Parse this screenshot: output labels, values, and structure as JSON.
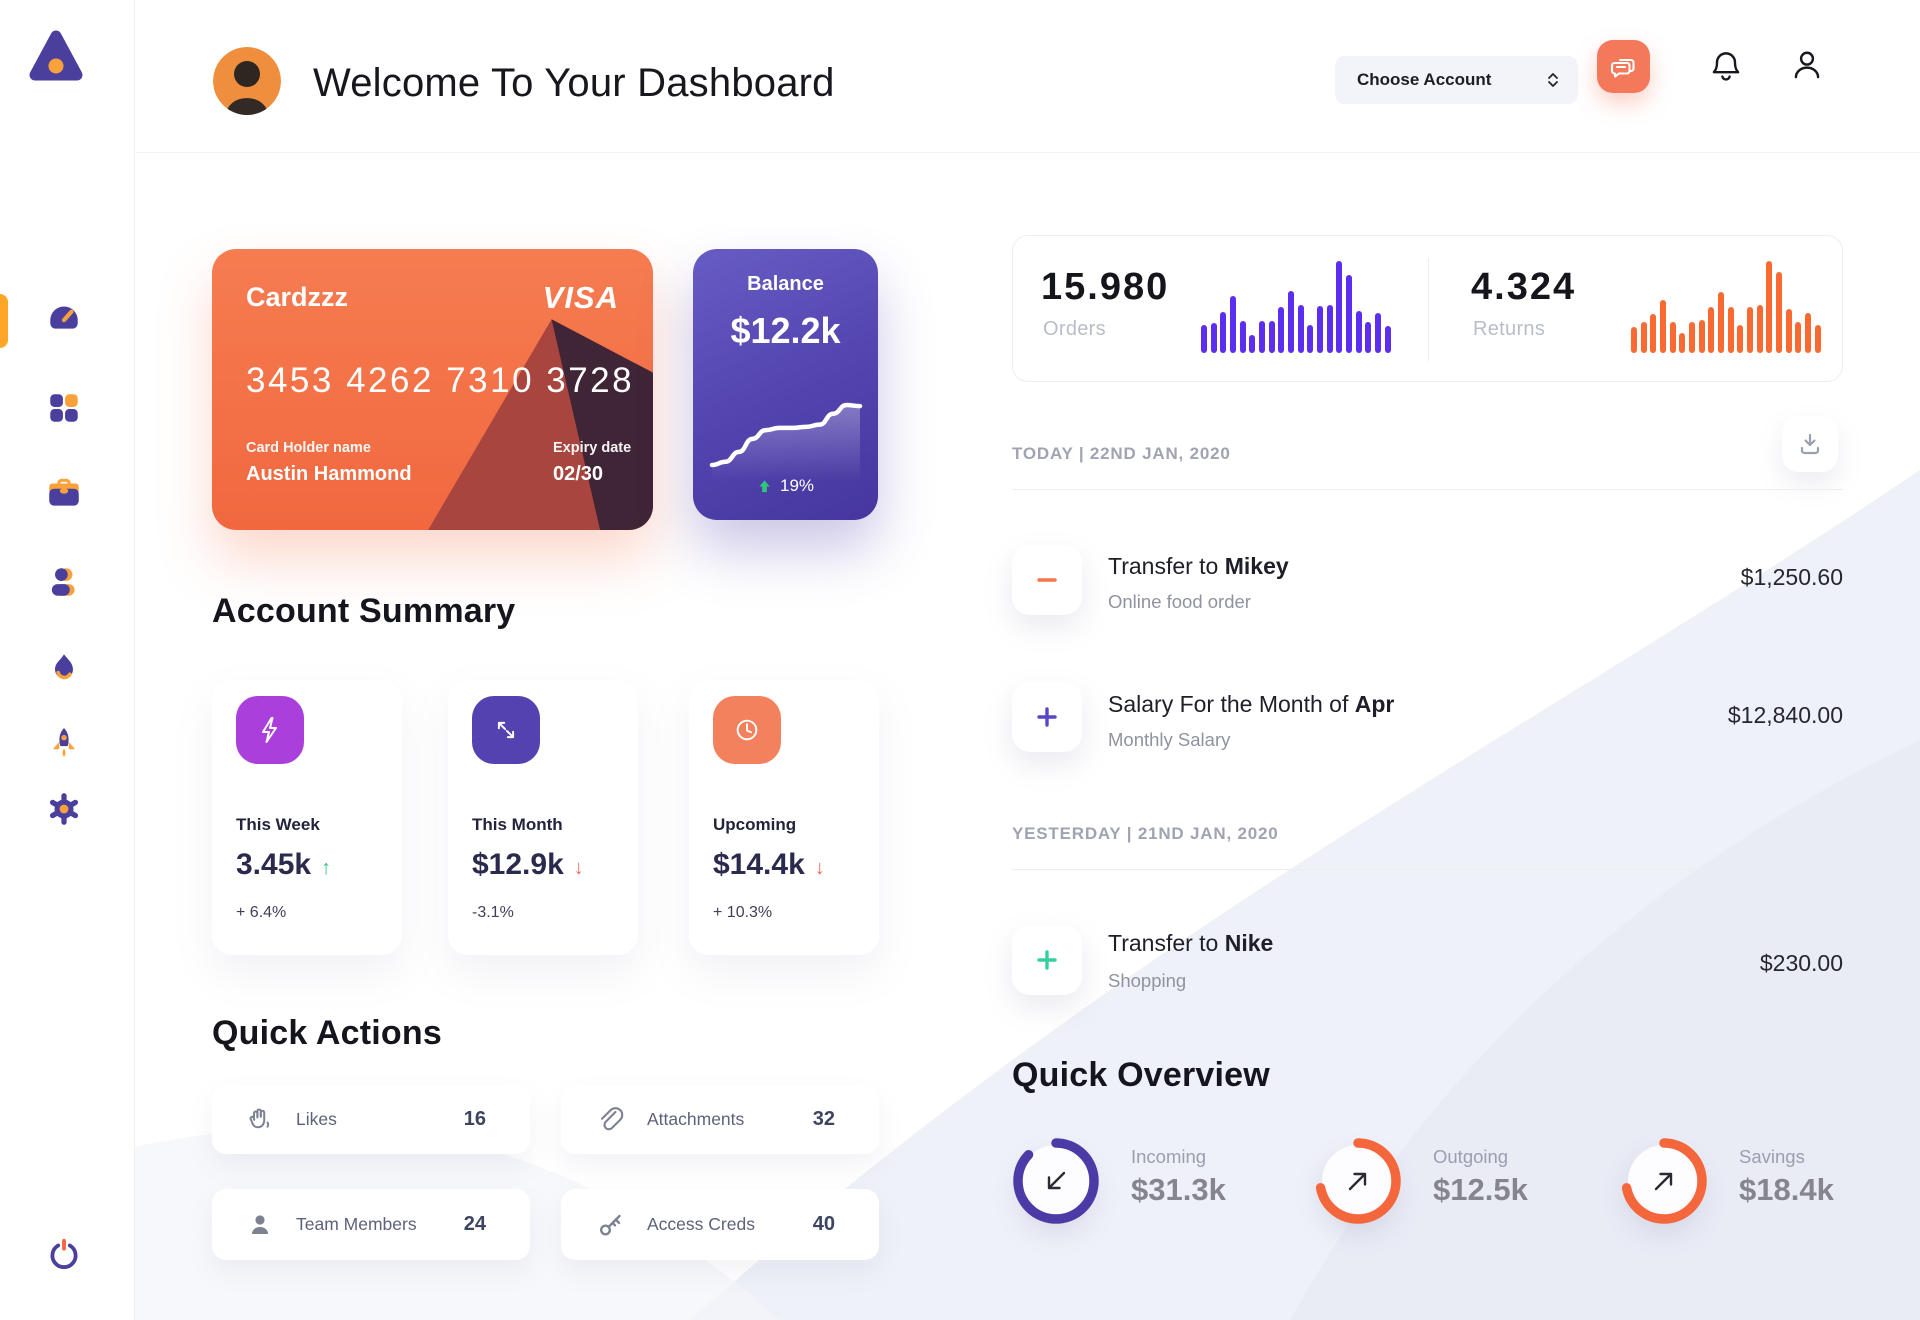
{
  "app": {
    "title": "Welcome To Your Dashboard"
  },
  "header": {
    "account_select": "Choose Account"
  },
  "sidebar": {
    "icons": [
      "gauge-icon",
      "grid-icon",
      "briefcase-icon",
      "person-icon",
      "flame-icon",
      "rocket-icon",
      "gear-icon"
    ],
    "logout_icon": "power-icon",
    "accent_purple": "#4b3f9e",
    "accent_orange": "#f9a23b"
  },
  "credit_card": {
    "name": "Cardzzz",
    "network": "VISA",
    "number": "3453 4262 7310 3728",
    "holder_label": "Card Holder name",
    "holder_name": "Austin Hammond",
    "expiry_label": "Expiry date",
    "expiry": "02/30",
    "bg_color": "#f4744a"
  },
  "balance_card": {
    "label": "Balance",
    "value": "$12.2k",
    "change": "19%",
    "trend": "up",
    "bg_color": "#5647b0",
    "spark": [
      10,
      13,
      22,
      34,
      42,
      44,
      44,
      45,
      47,
      57,
      65,
      64
    ]
  },
  "stats": {
    "orders": {
      "value": "15.980",
      "label": "Orders",
      "color": "#5c2ff0",
      "bars": [
        30,
        33,
        45,
        62,
        35,
        20,
        35,
        35,
        50,
        67,
        52,
        30,
        51,
        52,
        100,
        85,
        46,
        34,
        44,
        29
      ]
    },
    "returns": {
      "value": "4.324",
      "label": "Returns",
      "color": "#f96a33",
      "bars": [
        28,
        34,
        42,
        58,
        34,
        22,
        34,
        36,
        50,
        66,
        50,
        30,
        50,
        52,
        100,
        88,
        48,
        34,
        44,
        30
      ]
    }
  },
  "account_summary": {
    "heading": "Account Summary",
    "cards": [
      {
        "icon": "lightning-icon",
        "icon_color": "#ab3fdc",
        "label": "This Week",
        "value": "3.45k",
        "trend": "up",
        "delta": "+ 6.4%"
      },
      {
        "icon": "transfer-arrows-icon",
        "icon_color": "#5342af",
        "label": "This Month",
        "value": "$12.9k",
        "trend": "down",
        "delta": "-3.1%"
      },
      {
        "icon": "clock-icon",
        "icon_color": "#f4815d",
        "label": "Upcoming",
        "value": "$14.4k",
        "trend": "down",
        "delta": "+ 10.3%"
      }
    ]
  },
  "quick_actions": {
    "heading": "Quick Actions",
    "items": [
      {
        "icon": "hand-icon",
        "label": "Likes",
        "count": "16"
      },
      {
        "icon": "paperclip-icon",
        "label": "Attachments",
        "count": "32"
      },
      {
        "icon": "member-icon",
        "label": "Team Members",
        "count": "24"
      },
      {
        "icon": "key-icon",
        "label": "Access Creds",
        "count": "40"
      }
    ]
  },
  "transactions": {
    "download_icon": "download-icon",
    "groups": [
      {
        "date_label": "TODAY | 22ND JAN, 2020",
        "items": [
          {
            "icon": "minus-icon",
            "icon_color": "#f4764b",
            "title_prefix": "Transfer to ",
            "title_bold": "Mikey",
            "subtitle": "Online food order",
            "amount": "$1,250.60"
          },
          {
            "icon": "plus-icon",
            "icon_color": "#5746c8",
            "title_prefix": "Salary For the Month of ",
            "title_bold": "Apr",
            "subtitle": "Monthly Salary",
            "amount": "$12,840.00"
          }
        ]
      },
      {
        "date_label": "YESTERDAY | 21ND JAN, 2020",
        "items": [
          {
            "icon": "plus-icon",
            "icon_color": "#35d09d",
            "title_prefix": "Transfer to ",
            "title_bold": "Nike",
            "subtitle": "Shopping",
            "amount": "$230.00"
          }
        ]
      }
    ]
  },
  "quick_overview": {
    "heading": "Quick Overview",
    "items": [
      {
        "label": "Incoming",
        "value": "$31.3k",
        "percent": 87,
        "ring_color": "#4c3ba6",
        "arrow": "down-left"
      },
      {
        "label": "Outgoing",
        "value": "$12.5k",
        "percent": 72,
        "ring_color": "#f4673d",
        "arrow": "up-right"
      },
      {
        "label": "Savings",
        "value": "$18.4k",
        "percent": 72,
        "ring_color": "#f4673d",
        "arrow": "up-right"
      }
    ]
  }
}
